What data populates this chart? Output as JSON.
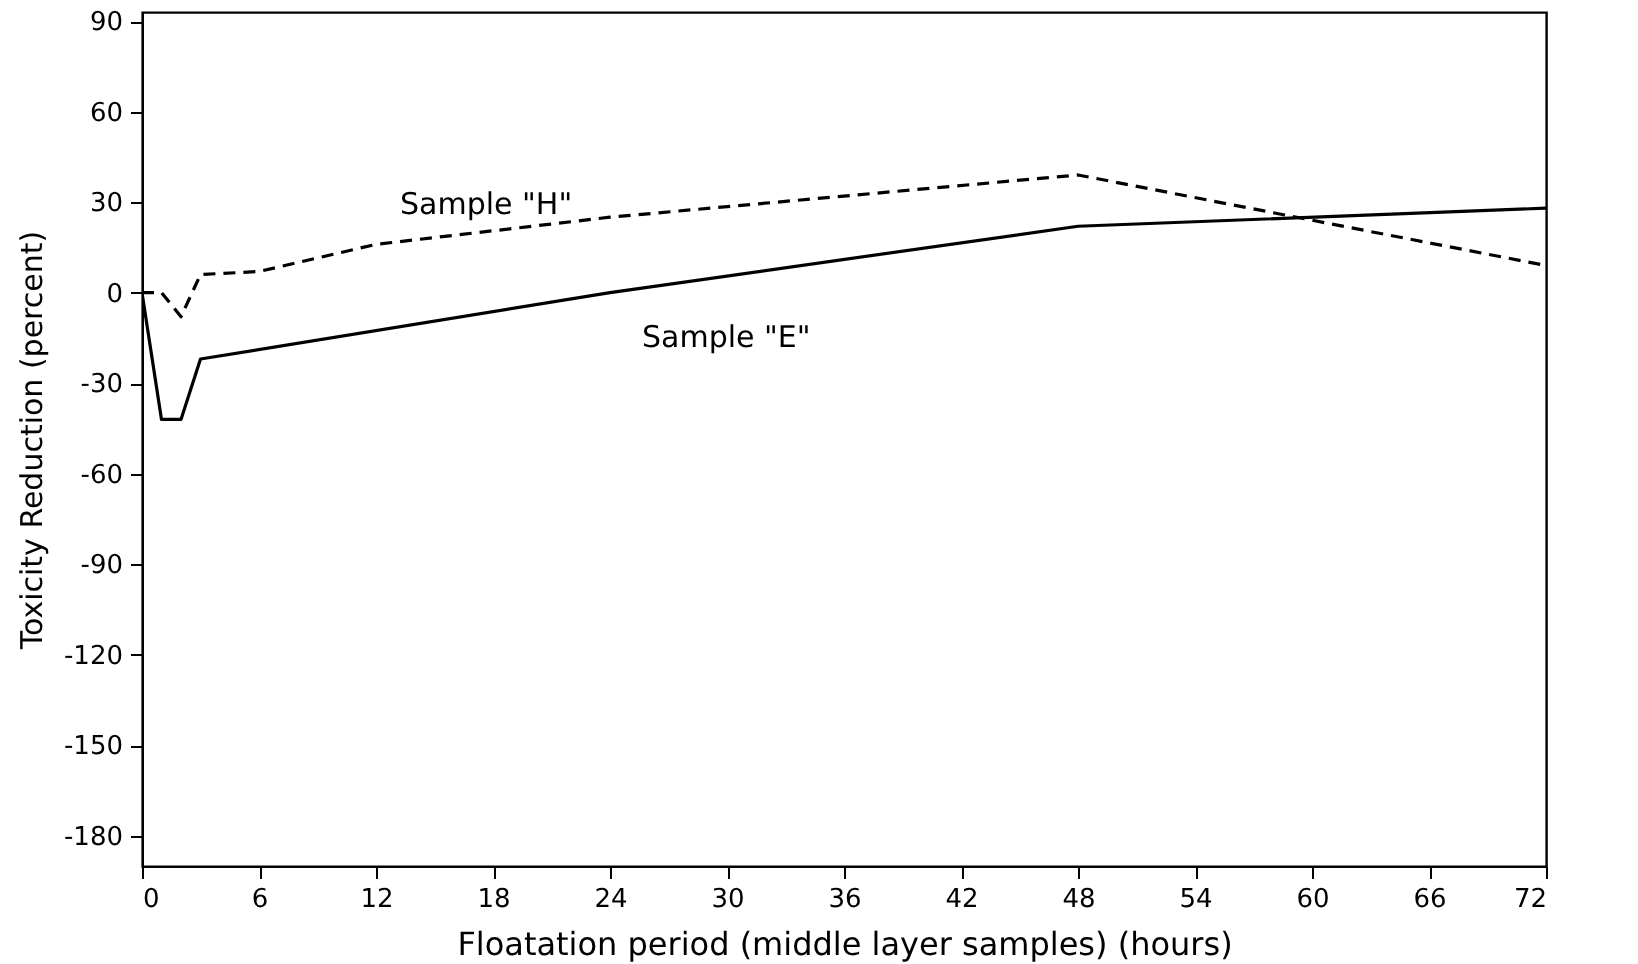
{
  "chart_data": {
    "type": "line",
    "xlabel": "Floatation period (middle layer samples) (hours)",
    "ylabel": "Toxicity Reduction (percent)",
    "xlim": [
      0,
      72
    ],
    "xticks": [
      0,
      6,
      12,
      18,
      24,
      30,
      36,
      42,
      48,
      54,
      60,
      66,
      72
    ],
    "ylim": [
      -190,
      93
    ],
    "yticks": [
      -180,
      -150,
      -120,
      -90,
      -60,
      -30,
      0,
      30,
      60,
      90
    ],
    "grid": false,
    "marker": "none",
    "series": [
      {
        "name": "Sample \"H\"",
        "color": "#000000",
        "line_style": "dashed",
        "x": [
          0,
          1,
          2,
          3,
          6,
          12,
          24,
          48,
          72
        ],
        "values": [
          0,
          0,
          -8,
          6,
          7,
          16,
          25,
          39,
          9
        ]
      },
      {
        "name": "Sample \"E\"",
        "color": "#000000",
        "line_style": "solid",
        "x": [
          0,
          1,
          2,
          3,
          24,
          48,
          72
        ],
        "values": [
          0,
          -42,
          -42,
          -22,
          0,
          22,
          28
        ]
      }
    ]
  }
}
